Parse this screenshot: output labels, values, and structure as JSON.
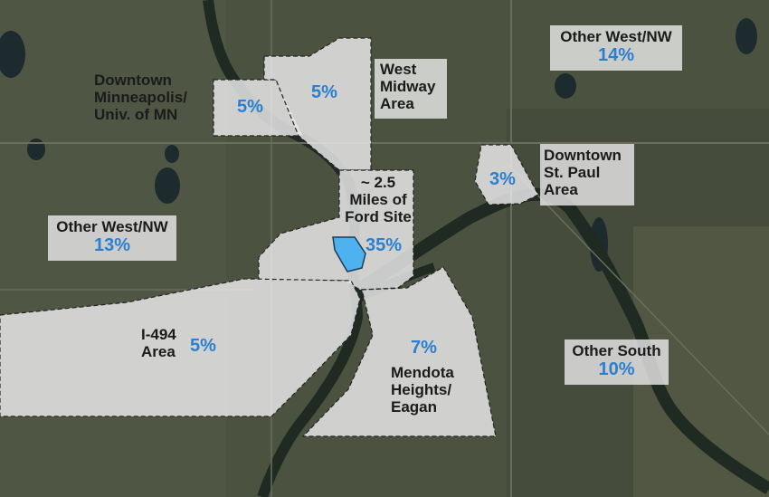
{
  "map": {
    "colors": {
      "land": "#4b5340",
      "river": "#1f2a22",
      "zone_fill": "#e8e8e8",
      "percent_text": "#2a7fd1",
      "site": "#4db2ee"
    }
  },
  "regions": {
    "downtown_mpls": {
      "name": "Downtown Minneapolis/ Univ. of MN",
      "share": "5%"
    },
    "west_midway": {
      "name": "West Midway Area",
      "share": "5%"
    },
    "ford_radius": {
      "name": "~ 2.5 Miles of Ford Site",
      "share": "35%"
    },
    "downtown_stpaul": {
      "name": "Downtown St. Paul Area",
      "share": "3%"
    },
    "i494": {
      "name": "I-494 Area",
      "share": "5%"
    },
    "mendota": {
      "name": "Mendota Heights/ Eagan",
      "share": "7%"
    },
    "other_wnw_top": {
      "name": "Other West/NW",
      "share": "14%"
    },
    "other_wnw_left": {
      "name": "Other West/NW",
      "share": "13%"
    },
    "other_south": {
      "name": "Other South",
      "share": "10%"
    }
  }
}
